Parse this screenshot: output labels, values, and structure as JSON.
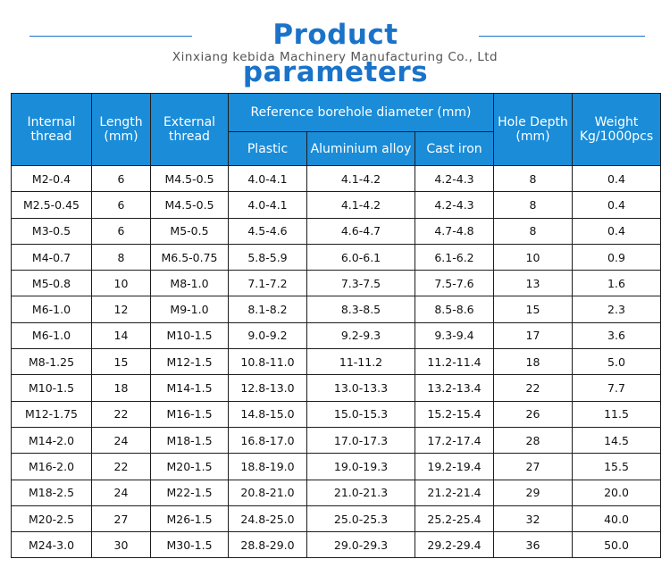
{
  "header": {
    "title": "Product parameters",
    "subtitle": "Xinxiang kebida Machinery Manufacturing Co., Ltd"
  },
  "table": {
    "headers": {
      "internal_thread": "Internal thread",
      "length": "Length (mm)",
      "external_thread": "External thread",
      "reference_group": "Reference borehole diameter (mm)",
      "plastic": "Plastic",
      "aluminium": "Aluminium alloy",
      "cast_iron": "Cast iron",
      "hole_depth": "Hole Depth (mm)",
      "weight": "Weight Kg/1000pcs"
    },
    "rows": [
      [
        "M2-0.4",
        "6",
        "M4.5-0.5",
        "4.0-4.1",
        "4.1-4.2",
        "4.2-4.3",
        "8",
        "0.4"
      ],
      [
        "M2.5-0.45",
        "6",
        "M4.5-0.5",
        "4.0-4.1",
        "4.1-4.2",
        "4.2-4.3",
        "8",
        "0.4"
      ],
      [
        "M3-0.5",
        "6",
        "M5-0.5",
        "4.5-4.6",
        "4.6-4.7",
        "4.7-4.8",
        "8",
        "0.4"
      ],
      [
        "M4-0.7",
        "8",
        "M6.5-0.75",
        "5.8-5.9",
        "6.0-6.1",
        "6.1-6.2",
        "10",
        "0.9"
      ],
      [
        "M5-0.8",
        "10",
        "M8-1.0",
        "7.1-7.2",
        "7.3-7.5",
        "7.5-7.6",
        "13",
        "1.6"
      ],
      [
        "M6-1.0",
        "12",
        "M9-1.0",
        "8.1-8.2",
        "8.3-8.5",
        "8.5-8.6",
        "15",
        "2.3"
      ],
      [
        "M6-1.0",
        "14",
        "M10-1.5",
        "9.0-9.2",
        "9.2-9.3",
        "9.3-9.4",
        "17",
        "3.6"
      ],
      [
        "M8-1.25",
        "15",
        "M12-1.5",
        "10.8-11.0",
        "11-11.2",
        "11.2-11.4",
        "18",
        "5.0"
      ],
      [
        "M10-1.5",
        "18",
        "M14-1.5",
        "12.8-13.0",
        "13.0-13.3",
        "13.2-13.4",
        "22",
        "7.7"
      ],
      [
        "M12-1.75",
        "22",
        "M16-1.5",
        "14.8-15.0",
        "15.0-15.3",
        "15.2-15.4",
        "26",
        "11.5"
      ],
      [
        "M14-2.0",
        "24",
        "M18-1.5",
        "16.8-17.0",
        "17.0-17.3",
        "17.2-17.4",
        "28",
        "14.5"
      ],
      [
        "M16-2.0",
        "22",
        "M20-1.5",
        "18.8-19.0",
        "19.0-19.3",
        "19.2-19.4",
        "27",
        "15.5"
      ],
      [
        "M18-2.5",
        "24",
        "M22-1.5",
        "20.8-21.0",
        "21.0-21.3",
        "21.2-21.4",
        "29",
        "20.0"
      ],
      [
        "M20-2.5",
        "27",
        "M26-1.5",
        "24.8-25.0",
        "25.0-25.3",
        "25.2-25.4",
        "32",
        "40.0"
      ],
      [
        "M24-3.0",
        "30",
        "M30-1.5",
        "28.8-29.0",
        "29.0-29.3",
        "29.2-29.4",
        "36",
        "50.0"
      ]
    ]
  }
}
